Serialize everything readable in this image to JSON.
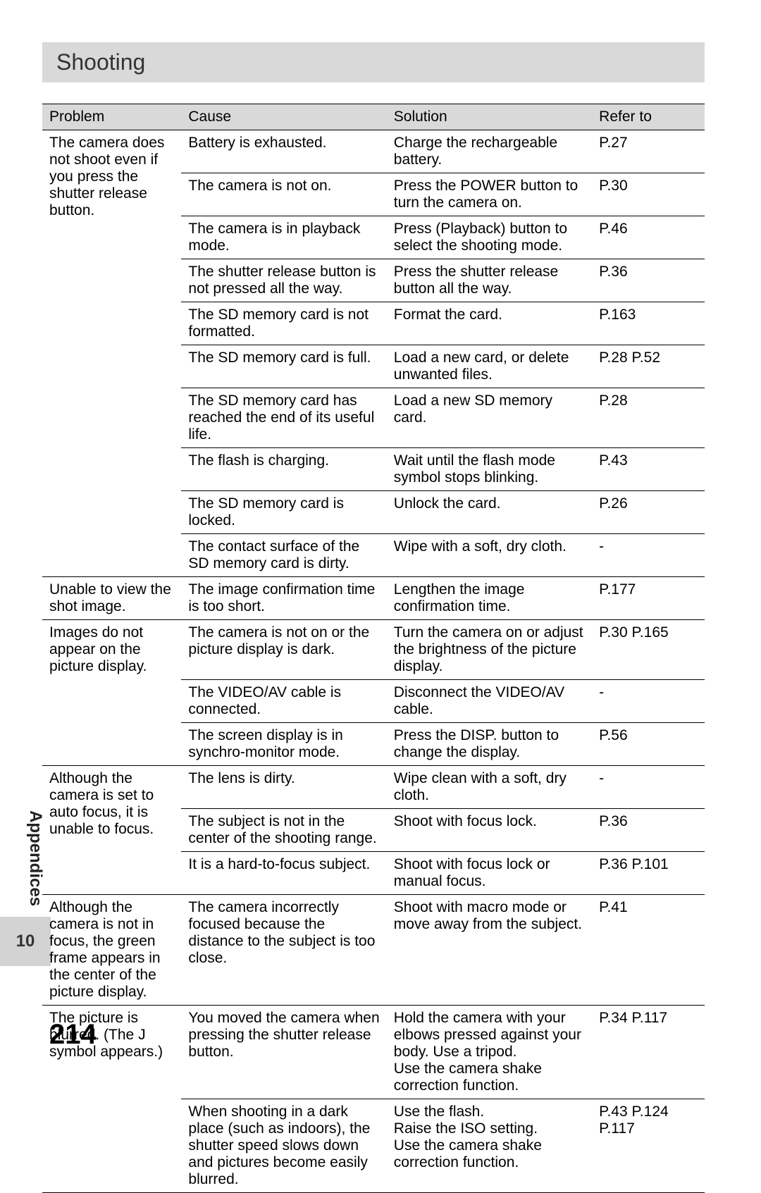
{
  "section_title": "Shooting",
  "side_tab_label": "Appendices",
  "side_tab_number": "10",
  "page_number": "214",
  "headers": {
    "problem": "Problem",
    "cause": "Cause",
    "solution": "Solution",
    "refer": "Refer to"
  },
  "rows": {
    "r1_problem": "The camera does not shoot even if you press the shutter release button.",
    "r1_cause": "Battery is exhausted.",
    "r1_solution": "Charge the rechargeable battery.",
    "r1_ref": "P.27",
    "r2_cause": "The camera is not on.",
    "r2_solution": "Press the POWER button to turn the camera on.",
    "r2_ref": "P.30",
    "r3_cause": "The camera is in playback mode.",
    "r3_solution": "Press (Playback) button to select the shooting mode.",
    "r3_ref": "P.46",
    "r4_cause": "The shutter release button is not pressed all the way.",
    "r4_solution": "Press the shutter release button all the way.",
    "r4_ref": "P.36",
    "r5_cause": "The SD memory card is not formatted.",
    "r5_solution": "Format the card.",
    "r5_ref": "P.163",
    "r6_cause": "The SD memory card is full.",
    "r6_solution": "Load a new card, or delete unwanted files.",
    "r6_ref": "P.28 P.52",
    "r7_cause": "The SD memory card has reached the end of its useful life.",
    "r7_solution": "Load a new SD memory card.",
    "r7_ref": "P.28",
    "r8_cause": "The flash is charging.",
    "r8_solution": "Wait until the flash mode symbol stops blinking.",
    "r8_ref": "P.43",
    "r9_cause": "The SD memory card is locked.",
    "r9_solution": "Unlock the card.",
    "r9_ref": "P.26",
    "r10_cause": "The contact surface of the SD memory card is dirty.",
    "r10_solution": "Wipe with a soft, dry cloth.",
    "r10_ref": "-",
    "r11_problem": "Unable to view the shot image.",
    "r11_cause": "The image confirmation time is too short.",
    "r11_solution": "Lengthen the image confirmation time.",
    "r11_ref": "P.177",
    "r12_problem": "Images do not appear on the picture display.",
    "r12_cause": "The camera is not on or the picture display is dark.",
    "r12_solution": "Turn the camera on or adjust the brightness of the picture display.",
    "r12_ref": "P.30 P.165",
    "r13_cause": "The VIDEO/AV cable is connected.",
    "r13_solution": "Disconnect the VIDEO/AV cable.",
    "r13_ref": "-",
    "r14_cause": "The screen display is in synchro-monitor mode.",
    "r14_solution": "Press the DISP. button to change the display.",
    "r14_ref": "P.56",
    "r15_problem": "Although the camera is set to auto focus, it is unable to focus.",
    "r15_cause": "The lens is dirty.",
    "r15_solution": "Wipe clean with a soft, dry cloth.",
    "r15_ref": "-",
    "r16_cause": "The subject is not in the center of the shooting range.",
    "r16_solution": "Shoot with focus lock.",
    "r16_ref": "P.36",
    "r17_cause": "It is a hard-to-focus subject.",
    "r17_solution": "Shoot with focus lock or manual focus.",
    "r17_ref": "P.36 P.101",
    "r18_problem": "Although the camera is not in focus, the green frame appears in the center of the picture display.",
    "r18_cause": "The camera incorrectly focused because the distance to the subject is too close.",
    "r18_solution": "Shoot with macro mode or move away from the subject.",
    "r18_ref": "P.41",
    "r19_problem_a": "The picture is blurred. (The",
    "r19_problem_b": " symbol appears.)",
    "r19_cause": "You moved the camera when pressing the shutter release button.",
    "r19_solution": "Hold the camera with your elbows pressed against your body. Use a tripod.\nUse the camera shake correction function.",
    "r19_ref": "P.34 P.117",
    "r20_cause": "When shooting in a dark place (such as indoors), the shutter speed slows down and pictures become easily blurred.",
    "r20_solution": "Use the flash.\nRaise the ISO setting.\nUse the camera shake correction function.",
    "r20_ref": "P.43 P.124 P.117"
  }
}
